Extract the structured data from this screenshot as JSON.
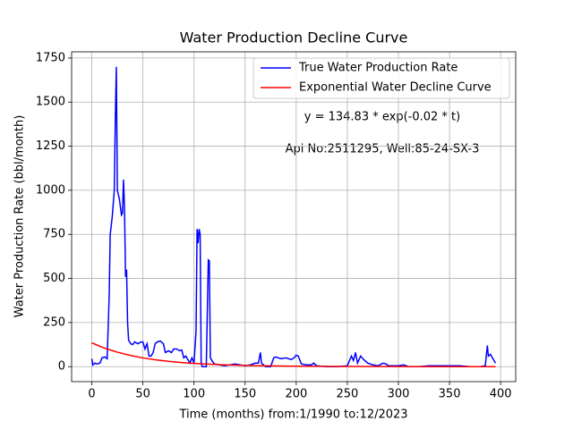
{
  "chart_data": {
    "type": "line",
    "title": "Water Production Decline Curve",
    "xlabel": "Time (months) from:1/1990 to:12/2023",
    "ylabel": "Water Production Rate (bbl/month)",
    "annotations": [
      "y = 134.83 * exp(-0.02 * t)",
      "Api No:2511295, Well:85-24-SX-3"
    ],
    "xlim": [
      -19.75,
      414.75
    ],
    "xticks": [
      0,
      50,
      100,
      150,
      200,
      250,
      300,
      350,
      400
    ],
    "ylim": [
      -85,
      1785
    ],
    "yticks": [
      0,
      250,
      500,
      750,
      1000,
      1250,
      1500,
      1750
    ],
    "grid": true,
    "legend": "upper right",
    "series": [
      {
        "name": "True Water Production Rate",
        "color": "#0000ff",
        "x": [
          0,
          1,
          3,
          5,
          8,
          10,
          13,
          15,
          17,
          18,
          20,
          22,
          23,
          24,
          25,
          27,
          29,
          30,
          31,
          32,
          33,
          34,
          35,
          36,
          38,
          40,
          42,
          45,
          48,
          50,
          52,
          54,
          56,
          58,
          60,
          62,
          64,
          67,
          70,
          72,
          75,
          78,
          80,
          83,
          86,
          88,
          90,
          92,
          94,
          96,
          98,
          100,
          102,
          103,
          104,
          105,
          106,
          107,
          108,
          110,
          112,
          114,
          115,
          116,
          118,
          120,
          125,
          130,
          135,
          140,
          145,
          150,
          155,
          160,
          163,
          165,
          166,
          170,
          175,
          178,
          180,
          185,
          190,
          195,
          198,
          200,
          202,
          205,
          210,
          215,
          217,
          220,
          230,
          240,
          250,
          254,
          256,
          258,
          260,
          263,
          266,
          270,
          275,
          280,
          285,
          288,
          290,
          300,
          305,
          310,
          320,
          330,
          340,
          350,
          360,
          370,
          380,
          385,
          387,
          388,
          390,
          393,
          395
        ],
        "values": [
          45,
          10,
          20,
          15,
          20,
          50,
          55,
          45,
          400,
          750,
          850,
          1000,
          1400,
          1700,
          1000,
          950,
          860,
          870,
          1060,
          900,
          510,
          550,
          250,
          150,
          130,
          125,
          140,
          130,
          140,
          140,
          100,
          130,
          60,
          60,
          80,
          130,
          140,
          145,
          130,
          80,
          90,
          80,
          100,
          100,
          90,
          95,
          50,
          60,
          40,
          20,
          50,
          20,
          200,
          780,
          700,
          780,
          750,
          20,
          0,
          0,
          0,
          605,
          600,
          50,
          30,
          15,
          10,
          5,
          10,
          15,
          10,
          5,
          10,
          20,
          20,
          80,
          20,
          0,
          0,
          50,
          55,
          45,
          50,
          40,
          50,
          65,
          60,
          15,
          10,
          10,
          20,
          5,
          0,
          0,
          5,
          60,
          35,
          80,
          20,
          60,
          40,
          20,
          10,
          5,
          20,
          15,
          5,
          5,
          10,
          0,
          0,
          5,
          5,
          5,
          5,
          0,
          0,
          5,
          120,
          60,
          70,
          40,
          20
        ]
      },
      {
        "name": "Exponential Water Decline Curve",
        "color": "#ff0000",
        "x": [
          0,
          12.5,
          25,
          37.5,
          50,
          62.5,
          75,
          87.5,
          100,
          125,
          150,
          175,
          200,
          250,
          300,
          350,
          395
        ],
        "values": [
          134.83,
          104.99,
          81.78,
          63.69,
          49.6,
          38.63,
          30.09,
          23.43,
          18.25,
          11.07,
          6.71,
          4.07,
          2.47,
          0.91,
          0.33,
          0.12,
          0.05
        ]
      }
    ]
  }
}
